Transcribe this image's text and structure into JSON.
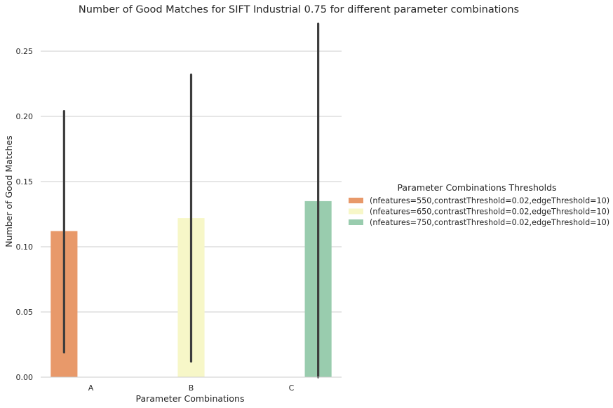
{
  "chart_data": {
    "type": "bar",
    "title": "Number of Good Matches for SIFT Industrial 0.75 for different parameter combinations",
    "xlabel": "Parameter Combinations",
    "ylabel": "Number of Good Matches",
    "categories": [
      "A",
      "B",
      "C"
    ],
    "ylim": [
      0,
      0.27
    ],
    "yticks": [
      0.0,
      0.05,
      0.1,
      0.15,
      0.2,
      0.25
    ],
    "ytick_labels": [
      "0.00",
      "0.05",
      "0.10",
      "0.15",
      "0.20",
      "0.25"
    ],
    "grid": true,
    "legend": {
      "title": "Parameter Combinations Thresholds",
      "placement": "right"
    },
    "series": [
      {
        "name": "(nfeatures=550,contrastThreshold=0.02,edgeThreshold=10)",
        "color": "#E8996A",
        "values": [
          0.112,
          null,
          null
        ],
        "error_low": [
          0.019,
          null,
          null
        ],
        "error_high": [
          0.204,
          null,
          null
        ]
      },
      {
        "name": "(nfeatures=650,contrastThreshold=0.02,edgeThreshold=10)",
        "color": "#F7F7C8",
        "values": [
          null,
          0.122,
          null
        ],
        "error_low": [
          null,
          0.012,
          null
        ],
        "error_high": [
          null,
          0.232,
          null
        ]
      },
      {
        "name": "(nfeatures=750,contrastThreshold=0.02,edgeThreshold=10)",
        "color": "#99CCAE",
        "values": [
          null,
          null,
          0.135
        ],
        "error_low": [
          null,
          null,
          0.0
        ],
        "error_high": [
          null,
          null,
          0.271
        ]
      }
    ]
  }
}
